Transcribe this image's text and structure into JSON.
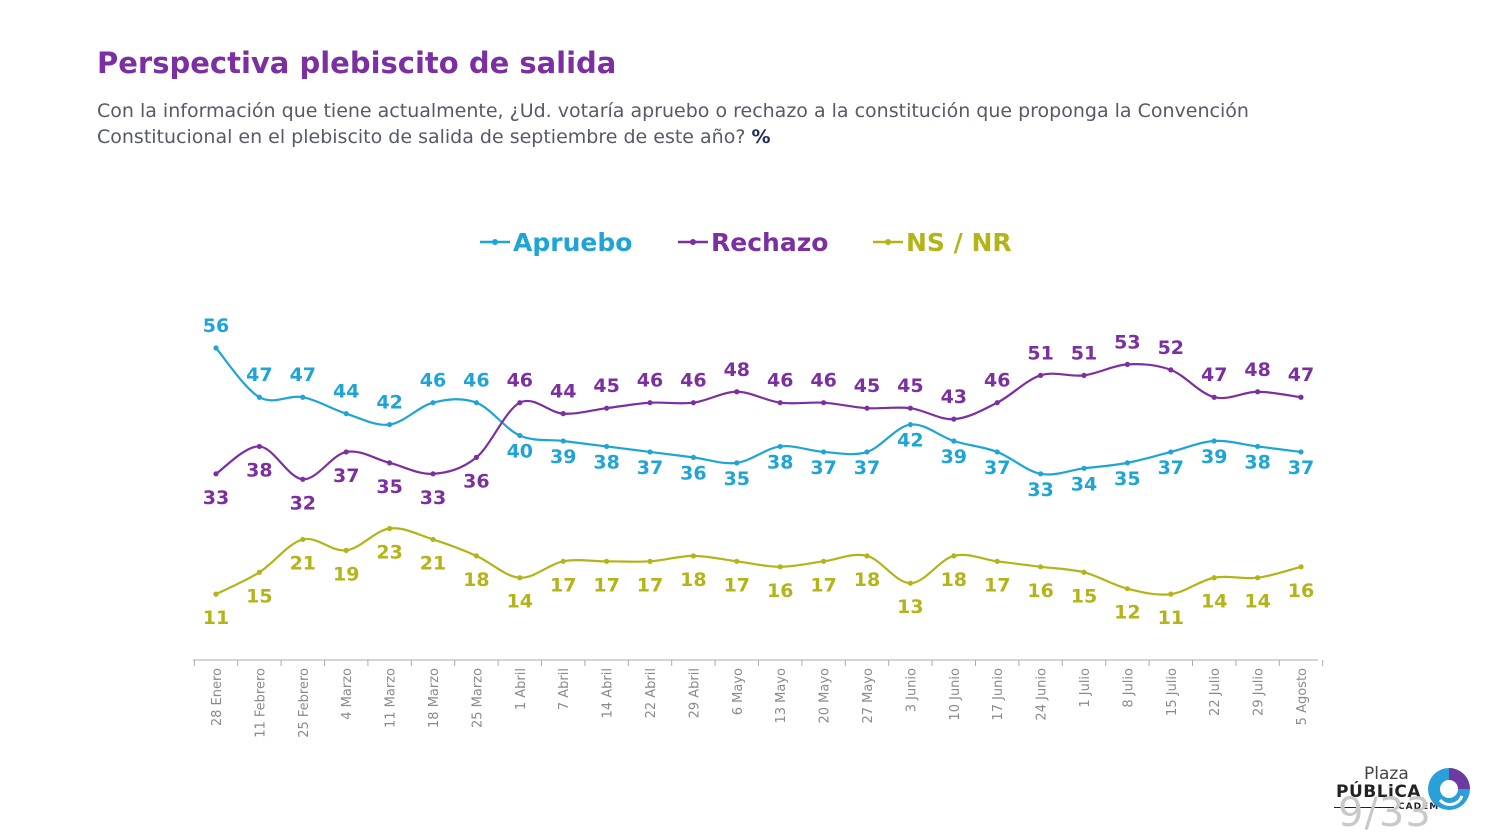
{
  "header": {
    "title": "Perspectiva plebiscito de salida",
    "subtitle": "Con la información que tiene actualmente, ¿Ud. votaría apruebo o rechazo a la constitución que proponga la Convención Constitucional en el plebiscito de salida de septiembre de este año?",
    "unit": "%"
  },
  "chart_data": {
    "type": "line",
    "categories": [
      "28 Enero",
      "11 Febrero",
      "25 Febrero",
      "4 Marzo",
      "11 Marzo",
      "18 Marzo",
      "25 Marzo",
      "1 Abril",
      "7 Abril",
      "14 Abril",
      "22 Abril",
      "29 Abril",
      "6 Mayo",
      "13 Mayo",
      "20 Mayo",
      "27 Mayo",
      "3 Junio",
      "10 Junio",
      "17 Junio",
      "24 Junio",
      "1 Julio",
      "8 Julio",
      "15 Julio",
      "22 Julio",
      "29 Julio",
      "5 Agosto"
    ],
    "series": [
      {
        "name": "Apruebo",
        "color": "#1ea4d6",
        "values": [
          56,
          47,
          47,
          44,
          42,
          46,
          46,
          40,
          39,
          38,
          37,
          36,
          35,
          38,
          37,
          37,
          42,
          39,
          37,
          33,
          34,
          35,
          37,
          39,
          38,
          37
        ]
      },
      {
        "name": "Rechazo",
        "color": "#7b2fa0",
        "values": [
          33,
          38,
          32,
          37,
          35,
          33,
          36,
          46,
          44,
          45,
          46,
          46,
          48,
          46,
          46,
          45,
          45,
          43,
          46,
          51,
          51,
          53,
          52,
          47,
          48,
          47
        ]
      },
      {
        "name": "NS / NR",
        "color": "#b2b418",
        "values": [
          11,
          15,
          21,
          19,
          23,
          21,
          18,
          14,
          17,
          17,
          17,
          18,
          17,
          16,
          17,
          18,
          13,
          18,
          17,
          16,
          15,
          12,
          11,
          14,
          14,
          16
        ]
      }
    ],
    "legend_position": "top",
    "grid": false,
    "ylim": [
      0,
      60
    ]
  },
  "footer": {
    "logo_line1": "Plaza",
    "logo_line2": "PÚBLiCA",
    "logo_line3": "CADEM",
    "page": "9/33"
  }
}
